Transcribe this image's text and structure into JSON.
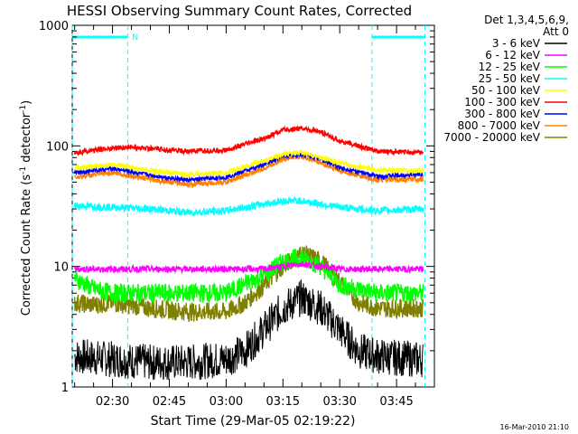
{
  "chart_data": {
    "type": "line",
    "title": "HESSI Observing Summary Count Rates, Corrected",
    "xlabel": "Start Time (29-Mar-05 02:19:22)",
    "ylabel": "Corrected Count Rate (s⁻¹ detector⁻¹)",
    "x_unit": "minutes",
    "xlim": [
      "02:19:22",
      "03:55:00"
    ],
    "ylim": [
      1,
      1000
    ],
    "yscale": "log",
    "xticks": [
      "02:30",
      "02:45",
      "03:00",
      "03:15",
      "03:30",
      "03:45"
    ],
    "yticks": [
      "1",
      "10",
      "100",
      "1000"
    ],
    "legend_title": [
      "Det 1,3,4,5,6,9,",
      "Att 0"
    ],
    "legend_position": "right",
    "day_night_bars": [
      {
        "from": "02:19:22",
        "to": "02:34:00"
      },
      {
        "from": "03:38:30",
        "to": "03:52:30"
      }
    ],
    "day_night_marker": "N",
    "saa_lines": [
      "02:19:22",
      "02:34:00",
      "03:38:30",
      "03:52:30"
    ],
    "footer_timestamp": "16-Mar-2010 21:10",
    "series": [
      {
        "name": "3 - 6 keV",
        "color": "#000000",
        "x": [
          "02:20",
          "02:30",
          "02:40",
          "02:50",
          "03:00",
          "03:05",
          "03:10",
          "03:15",
          "03:20",
          "03:25",
          "03:30",
          "03:35",
          "03:40",
          "03:50",
          "03:52"
        ],
        "y": [
          1.8,
          1.7,
          1.6,
          1.6,
          1.7,
          2.0,
          3.0,
          4.5,
          5.5,
          4.5,
          3.0,
          2.0,
          1.8,
          1.7,
          1.7
        ]
      },
      {
        "name": "6 - 12 keV",
        "color": "#ff00ff",
        "x": [
          "02:20",
          "02:30",
          "02:40",
          "02:50",
          "03:00",
          "03:10",
          "03:15",
          "03:20",
          "03:25",
          "03:30",
          "03:40",
          "03:52"
        ],
        "y": [
          9.5,
          9.5,
          9.5,
          9.5,
          9.5,
          9.5,
          10,
          10.5,
          10,
          9.5,
          9.5,
          9.5
        ]
      },
      {
        "name": "12 - 25 keV",
        "color": "#00ff00",
        "x": [
          "02:20",
          "02:25",
          "02:30",
          "02:40",
          "02:50",
          "03:00",
          "03:10",
          "03:15",
          "03:20",
          "03:25",
          "03:30",
          "03:40",
          "03:52"
        ],
        "y": [
          8.0,
          6.5,
          6.0,
          6.0,
          6.0,
          6.0,
          8.5,
          11.0,
          12.0,
          10.0,
          7.0,
          6.0,
          6.0
        ]
      },
      {
        "name": "25 - 50 keV",
        "color": "#00ffff",
        "x": [
          "02:20",
          "02:30",
          "02:40",
          "02:50",
          "03:00",
          "03:10",
          "03:15",
          "03:20",
          "03:25",
          "03:30",
          "03:40",
          "03:52"
        ],
        "y": [
          32,
          31,
          30,
          28,
          29,
          33,
          35,
          35,
          33,
          31,
          29,
          30
        ]
      },
      {
        "name": "50 - 100 keV",
        "color": "#ffff00",
        "x": [
          "02:20",
          "02:30",
          "02:40",
          "02:50",
          "03:00",
          "03:10",
          "03:15",
          "03:20",
          "03:25",
          "03:30",
          "03:40",
          "03:52"
        ],
        "y": [
          65,
          70,
          62,
          58,
          60,
          75,
          85,
          88,
          80,
          72,
          63,
          62
        ]
      },
      {
        "name": "100 - 300 keV",
        "color": "#ff0000",
        "x": [
          "02:20",
          "02:25",
          "02:30",
          "02:35",
          "02:40",
          "02:50",
          "03:00",
          "03:10",
          "03:15",
          "03:20",
          "03:25",
          "03:30",
          "03:40",
          "03:52"
        ],
        "y": [
          88,
          92,
          96,
          98,
          95,
          90,
          92,
          115,
          135,
          140,
          130,
          110,
          90,
          88
        ]
      },
      {
        "name": "300 - 800 keV",
        "color": "#0000ff",
        "x": [
          "02:20",
          "02:30",
          "02:40",
          "02:50",
          "03:00",
          "03:10",
          "03:15",
          "03:20",
          "03:25",
          "03:30",
          "03:40",
          "03:52"
        ],
        "y": [
          60,
          65,
          57,
          52,
          55,
          70,
          82,
          85,
          78,
          66,
          56,
          58
        ]
      },
      {
        "name": "800 - 7000 keV",
        "color": "#ff8000",
        "x": [
          "02:20",
          "02:30",
          "02:40",
          "02:50",
          "03:00",
          "03:10",
          "03:15",
          "03:20",
          "03:25",
          "03:30",
          "03:40",
          "03:52"
        ],
        "y": [
          55,
          60,
          53,
          48,
          50,
          65,
          78,
          82,
          72,
          62,
          52,
          53
        ]
      },
      {
        "name": "7000 - 20000 keV",
        "color": "#808000",
        "x": [
          "02:20",
          "02:25",
          "02:30",
          "02:40",
          "02:50",
          "03:00",
          "03:05",
          "03:10",
          "03:15",
          "03:20",
          "03:25",
          "03:30",
          "03:35",
          "03:40",
          "03:52"
        ],
        "y": [
          5.0,
          4.8,
          5.0,
          4.5,
          4.2,
          4.2,
          5.0,
          7.0,
          10.0,
          13.0,
          11.0,
          7.5,
          5.0,
          4.5,
          4.5
        ]
      }
    ]
  }
}
